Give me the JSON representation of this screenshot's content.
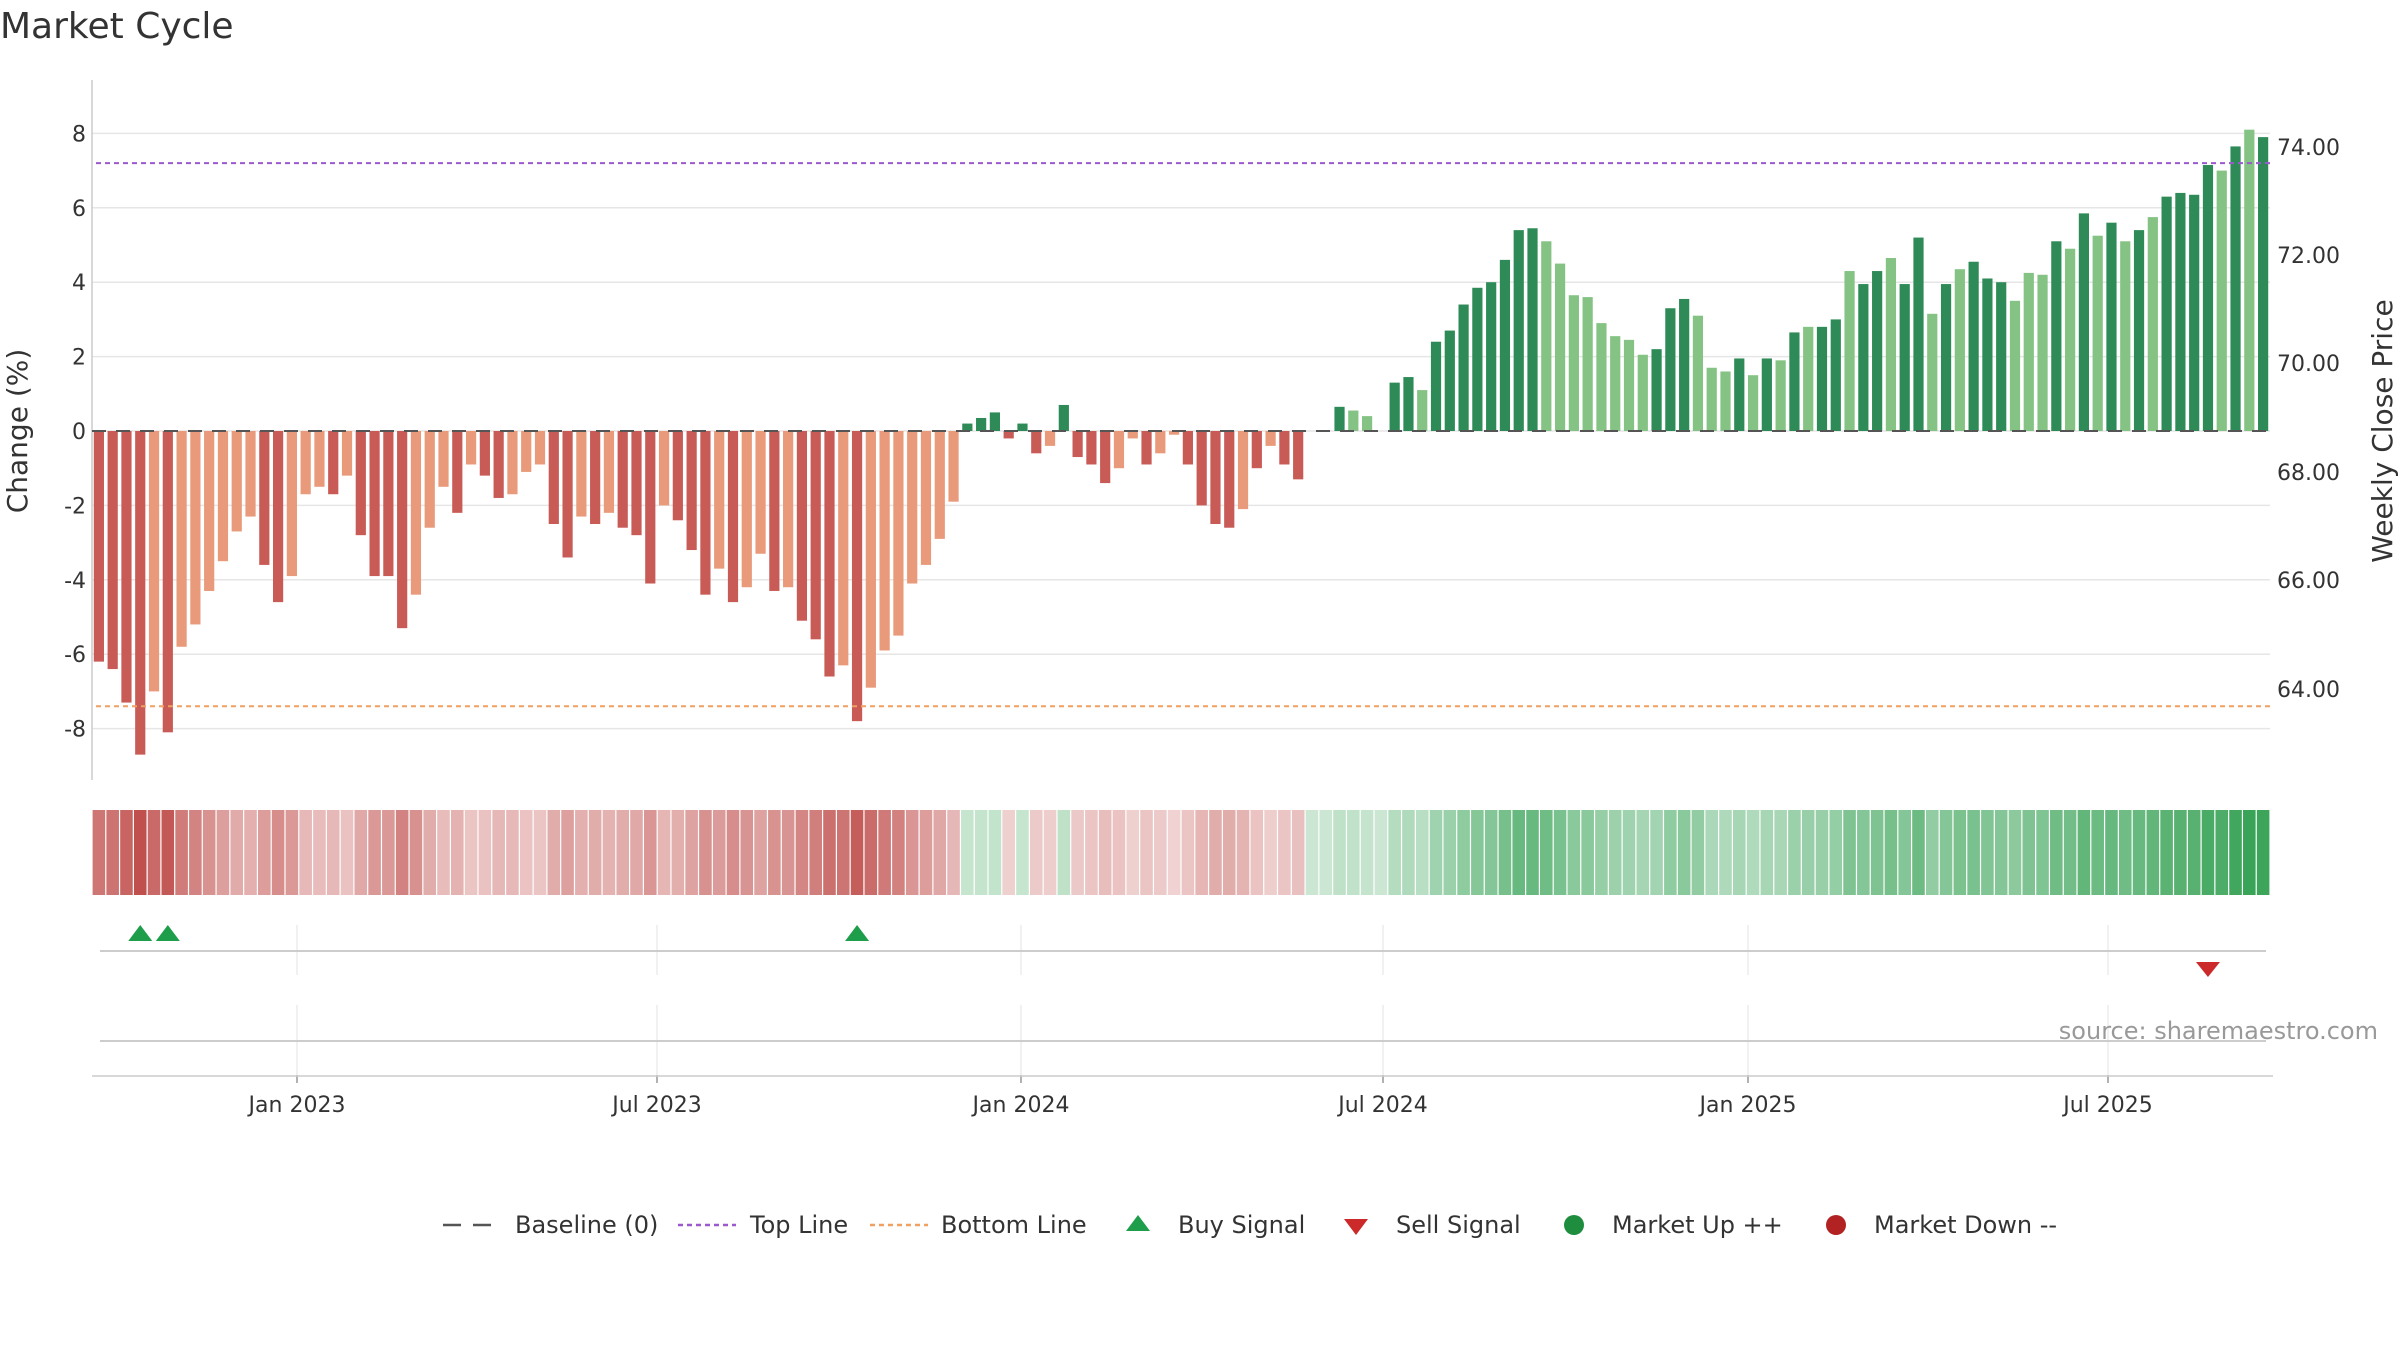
{
  "title": "Market Cycle",
  "source_text": "source: sharemaestro.com",
  "colors": {
    "strong_down": "#c95b57",
    "weak_down": "#e89a7a",
    "strong_up": "#2e8b57",
    "weak_up": "#84c384",
    "top_line": "#9b59d0",
    "bottom_line": "#f0a060",
    "baseline": "#555555",
    "buy": "#1e9e4a",
    "sell": "#cc2a2a",
    "market_up": "#1e8e3e",
    "market_down": "#b22222"
  },
  "chart_data": {
    "type": "bar",
    "y_label": "Change (%)",
    "y2_label": "Weekly Close Price",
    "y_ticks": [
      "8",
      "6",
      "4",
      "2",
      "0",
      "-2",
      "-4",
      "-6",
      "-8"
    ],
    "y2_ticks": [
      "74.00",
      "72.00",
      "70.00",
      "68.00",
      "66.00",
      "64.00"
    ],
    "x_ticks": [
      "Jan 2023",
      "Jul 2023",
      "Jan 2024",
      "Jul 2024",
      "Jan 2025",
      "Jul 2025"
    ],
    "ylim": [
      -9.3,
      9.3
    ],
    "top_line": 7.2,
    "bottom_line": -7.4,
    "values": [
      -6.2,
      -6.4,
      -7.3,
      -8.7,
      -7.0,
      -8.1,
      -5.8,
      -5.2,
      -4.3,
      -3.5,
      -2.7,
      -2.3,
      -3.6,
      -4.6,
      -3.9,
      -1.7,
      -1.5,
      -1.7,
      -1.2,
      -2.8,
      -3.9,
      -3.9,
      -5.3,
      -4.4,
      -2.6,
      -1.5,
      -2.2,
      -0.9,
      -1.2,
      -1.8,
      -1.7,
      -1.1,
      -0.9,
      -2.5,
      -3.4,
      -2.3,
      -2.5,
      -2.2,
      -2.6,
      -2.8,
      -4.1,
      -2.0,
      -2.4,
      -3.2,
      -4.4,
      -3.7,
      -4.6,
      -4.2,
      -3.3,
      -4.3,
      -4.2,
      -5.1,
      -5.6,
      -6.6,
      -6.3,
      -7.8,
      -6.9,
      -5.9,
      -5.5,
      -4.1,
      -3.6,
      -2.9,
      -1.9,
      0.2,
      0.35,
      0.5,
      -0.2,
      0.2,
      -0.6,
      -0.4,
      0.7,
      -0.7,
      -0.9,
      -1.4,
      -1.0,
      -0.2,
      -0.9,
      -0.6,
      -0.1,
      -0.9,
      -2.0,
      -2.5,
      -2.6,
      -2.1,
      -1.0,
      -0.4,
      -0.9,
      -1.3,
      0.0,
      0.0,
      0.65,
      0.55,
      0.4,
      0.0,
      1.3,
      1.45,
      1.1,
      2.4,
      2.7,
      3.4,
      3.85,
      4.0,
      4.6,
      5.4,
      5.45,
      5.1,
      4.5,
      3.65,
      3.6,
      2.9,
      2.55,
      2.45,
      2.05,
      2.2,
      3.3,
      3.55,
      3.1,
      1.7,
      1.6,
      1.95,
      1.5,
      1.95,
      1.9,
      2.65,
      2.8,
      2.8,
      3.0,
      4.3,
      3.95,
      4.3,
      4.65,
      3.95,
      5.2,
      3.15,
      3.95,
      4.35,
      4.55,
      4.1,
      4.0,
      3.5,
      4.25,
      4.2,
      5.1,
      4.9,
      5.85,
      5.25,
      5.6,
      5.1,
      5.4,
      5.75,
      6.3,
      6.4,
      6.35,
      7.15,
      7.0,
      7.65,
      8.1,
      7.9
    ],
    "shades": [
      "s",
      "s",
      "s",
      "s",
      "w",
      "s",
      "w",
      "w",
      "w",
      "w",
      "w",
      "w",
      "s",
      "s",
      "w",
      "w",
      "w",
      "s",
      "w",
      "s",
      "s",
      "s",
      "s",
      "w",
      "w",
      "w",
      "s",
      "w",
      "s",
      "s",
      "w",
      "w",
      "w",
      "s",
      "s",
      "w",
      "s",
      "w",
      "s",
      "s",
      "s",
      "w",
      "s",
      "s",
      "s",
      "w",
      "s",
      "w",
      "w",
      "s",
      "w",
      "s",
      "s",
      "s",
      "w",
      "s",
      "w",
      "w",
      "w",
      "w",
      "w",
      "w",
      "w",
      "s",
      "s",
      "s",
      "s",
      "s",
      "s",
      "w",
      "s",
      "s",
      "s",
      "s",
      "w",
      "w",
      "s",
      "w",
      "w",
      "s",
      "s",
      "s",
      "s",
      "w",
      "s",
      "w",
      "s",
      "s",
      "s",
      "s",
      "s",
      "w",
      "w",
      "s",
      "s",
      "s",
      "w",
      "s",
      "s",
      "s",
      "s",
      "s",
      "s",
      "s",
      "s",
      "w",
      "w",
      "w",
      "w",
      "w",
      "w",
      "w",
      "w",
      "s",
      "s",
      "s",
      "w",
      "w",
      "w",
      "s",
      "w",
      "s",
      "w",
      "s",
      "w",
      "s",
      "s",
      "w",
      "s",
      "s",
      "w",
      "s",
      "s",
      "w",
      "s",
      "w",
      "s",
      "s",
      "s",
      "w",
      "w",
      "w",
      "s",
      "w",
      "s",
      "w",
      "s",
      "w",
      "s",
      "w",
      "s",
      "s",
      "s",
      "s",
      "w",
      "s",
      "w",
      "s",
      "s",
      "w"
    ],
    "buy_signals": [
      3,
      5,
      55
    ],
    "sell_signals": [
      153
    ]
  },
  "legend": {
    "items": [
      {
        "label": "Baseline (0)",
        "symbol": "baseline"
      },
      {
        "label": "Top Line",
        "symbol": "top"
      },
      {
        "label": "Bottom Line",
        "symbol": "bottom"
      },
      {
        "label": "Buy Signal",
        "symbol": "buy"
      },
      {
        "label": "Sell Signal",
        "symbol": "sell"
      },
      {
        "label": "Market Up ++",
        "symbol": "up"
      },
      {
        "label": "Market Down --",
        "symbol": "down"
      }
    ]
  }
}
